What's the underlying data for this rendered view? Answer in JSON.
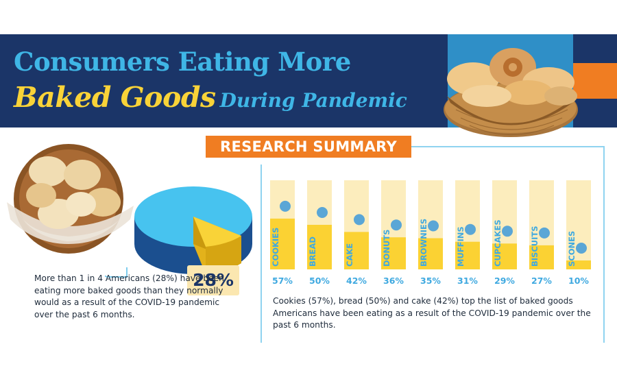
{
  "header": {
    "title_line1": "Consumers Eating More",
    "title_highlight": "Baked Goods",
    "title_rest": "During Pandemic"
  },
  "summary_label": "RESEARCH SUMMARY",
  "left_stat": {
    "value_label": "28%",
    "value": 28,
    "text": "More than 1 in 4 Americans (28%) have been eating more baked goods than they normally would as a result of the COVID-19 pandemic over the past 6 months."
  },
  "caption": "Cookies (57%), bread (50%) and cake (42%) top the list of baked goods Americans have been eating as a result of the COVID-19 pandemic over the past 6 months.",
  "colors": {
    "navy": "#1b3568",
    "sky": "#3fb6e6",
    "yellow": "#f9d338",
    "orange": "#f07d22",
    "bar_bg": "#fcedbd",
    "bar_fill": "#fbd233"
  },
  "chart_data": [
    {
      "type": "pie",
      "slices": [
        {
          "label": "28%",
          "value": 28
        },
        {
          "value": 72
        }
      ]
    },
    {
      "type": "bar",
      "categories": [
        "COOKIES",
        "BREAD",
        "CAKE",
        "DONUTS",
        "BROWNIES",
        "MUFFINS",
        "CUPCAKES",
        "BISCUITS",
        "SCONES"
      ],
      "values": [
        57,
        50,
        42,
        36,
        35,
        31,
        29,
        27,
        10
      ],
      "value_labels": [
        "57%",
        "50%",
        "42%",
        "36%",
        "35%",
        "31%",
        "29%",
        "27%",
        "10%"
      ],
      "icons": [
        "cookie-icon",
        "bread-icon",
        "cake-icon",
        "donut-icon",
        "brownie-icon",
        "muffin-icon",
        "cupcake-icon",
        "biscuit-icon",
        "scone-icon"
      ],
      "ylim": [
        0,
        100
      ]
    }
  ]
}
